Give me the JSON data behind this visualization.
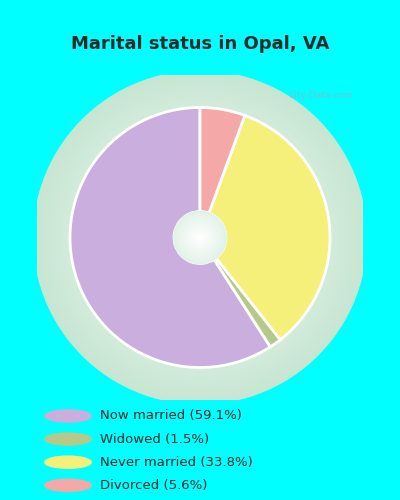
{
  "title": "Marital status in Opal, VA",
  "title_color": "#2a2a2a",
  "title_fontsize": 13,
  "bg_color_cyan": "#00ffff",
  "bg_color_chart_center": "#c8e6d0",
  "slices": [
    59.1,
    1.5,
    33.8,
    5.6
  ],
  "labels": [
    "Now married (59.1%)",
    "Widowed (1.5%)",
    "Never married (33.8%)",
    "Divorced (5.6%)"
  ],
  "colors": [
    "#c9aede",
    "#b5c98a",
    "#f5f07a",
    "#f5a8a8"
  ],
  "start_angle": 90,
  "donut_width": 0.32,
  "watermark": "City-Data.com"
}
